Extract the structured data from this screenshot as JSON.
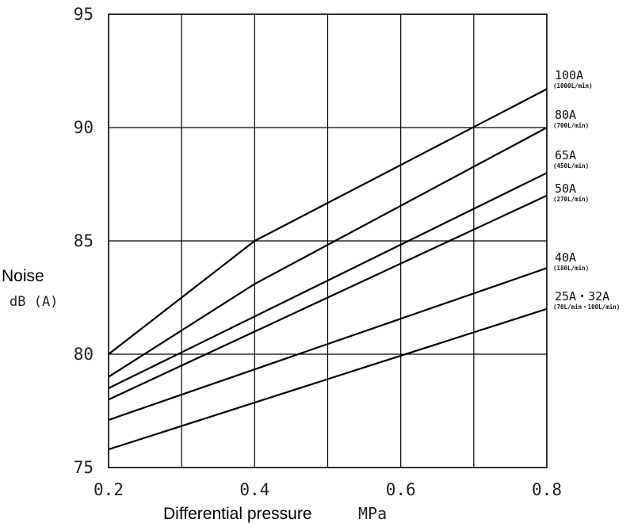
{
  "chart_data": {
    "type": "line",
    "ylabel": "Noise",
    "yunit": "dB (A)",
    "xlabel": "Differential pressure",
    "xunit": "MPa",
    "xlim": [
      0.2,
      0.8
    ],
    "ylim": [
      75,
      95
    ],
    "xticks": [
      0.2,
      0.3,
      0.4,
      0.5,
      0.6,
      0.7,
      0.8
    ],
    "xtick_labels": [
      "0.2",
      "0.4",
      "0.6",
      "0.8"
    ],
    "yticks": [
      75,
      80,
      85,
      90,
      95
    ],
    "ytick_labels": [
      "75",
      "80",
      "85",
      "90",
      "95"
    ],
    "grid": true,
    "series": [
      {
        "name": "100A",
        "sub": "(1000L/min)",
        "x": [
          0.2,
          0.4,
          0.8
        ],
        "y": [
          80,
          85,
          91.7
        ]
      },
      {
        "name": "80A",
        "sub": "(700L/min)",
        "x": [
          0.2,
          0.4,
          0.8
        ],
        "y": [
          79,
          83.1,
          90
        ]
      },
      {
        "name": "65A",
        "sub": "(450L/min)",
        "x": [
          0.2,
          0.8
        ],
        "y": [
          78.5,
          88
        ]
      },
      {
        "name": "50A",
        "sub": "(270L/min)",
        "x": [
          0.2,
          0.8
        ],
        "y": [
          78,
          87
        ]
      },
      {
        "name": "40A",
        "sub": "(180L/min)",
        "x": [
          0.2,
          0.8
        ],
        "y": [
          77.1,
          83.8
        ]
      },
      {
        "name": "25A・32A",
        "sub": "(70L/min・100L/min)",
        "x": [
          0.2,
          0.8
        ],
        "y": [
          75.8,
          82
        ]
      }
    ]
  }
}
